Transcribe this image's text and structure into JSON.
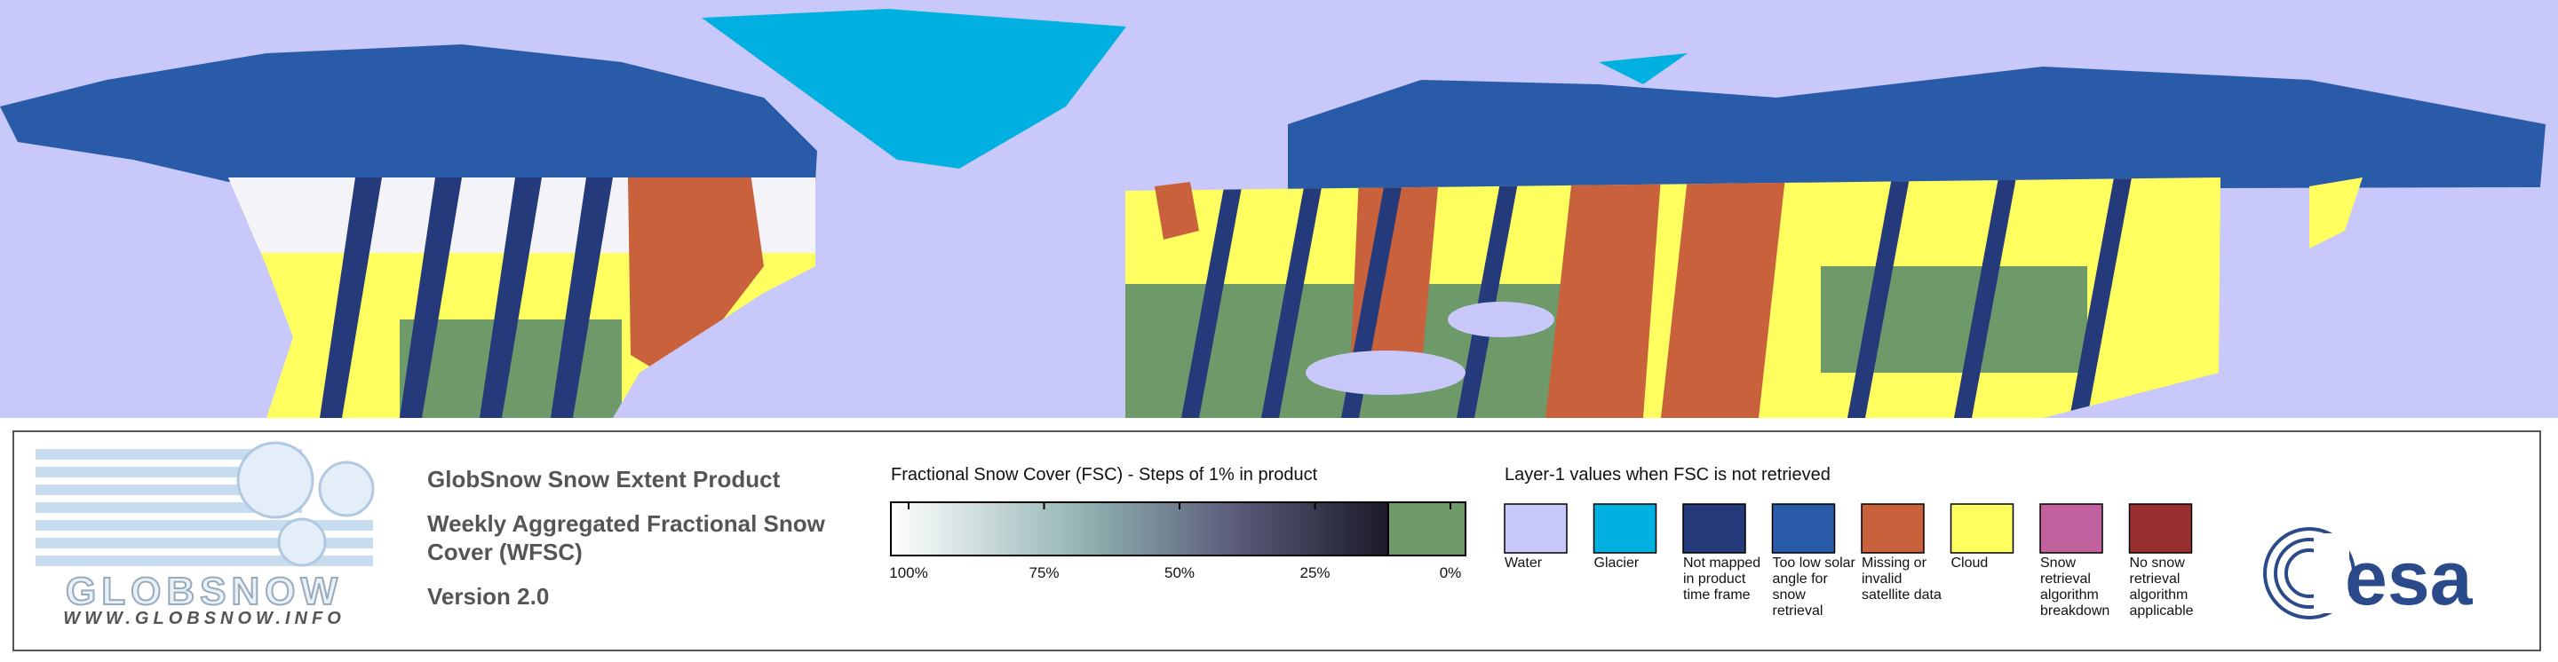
{
  "header": {
    "product": "GlobSnow Snow Extent Product",
    "title": "Weekly Aggregated Fractional Snow Cover (WFSC)",
    "version": "Version 2.0"
  },
  "logo": {
    "name": "GLOBSNOW",
    "url": "WWW.GLOBSNOW.INFO"
  },
  "fsc_scale": {
    "title": "Fractional Snow Cover (FSC) - Steps of 1% in product",
    "ticks": [
      {
        "value": 100,
        "label": "100%"
      },
      {
        "value": 75,
        "label": "75%"
      },
      {
        "value": 50,
        "label": "50%"
      },
      {
        "value": 25,
        "label": "25%"
      },
      {
        "value": 0,
        "label": "0%"
      }
    ]
  },
  "layer1": {
    "title": "Layer-1 values when FSC is not retrieved",
    "classes": [
      {
        "label": "Water",
        "color": "#c8c8fa"
      },
      {
        "label": "Glacier",
        "color": "#00b0e0"
      },
      {
        "label": "Not mapped in product time frame",
        "color": "#253a7a"
      },
      {
        "label": "Too low solar angle for snow retrieval",
        "color": "#2a5ba8"
      },
      {
        "label": "Missing or invalid satellite data",
        "color": "#c8613c"
      },
      {
        "label": "Cloud",
        "color": "#ffff60"
      },
      {
        "label": "Snow retrieval algorithm breakdown",
        "color": "#c0609c"
      },
      {
        "label": "No snow retrieval algorithm applicable",
        "color": "#9a2f2f"
      }
    ]
  },
  "agency": "esa"
}
